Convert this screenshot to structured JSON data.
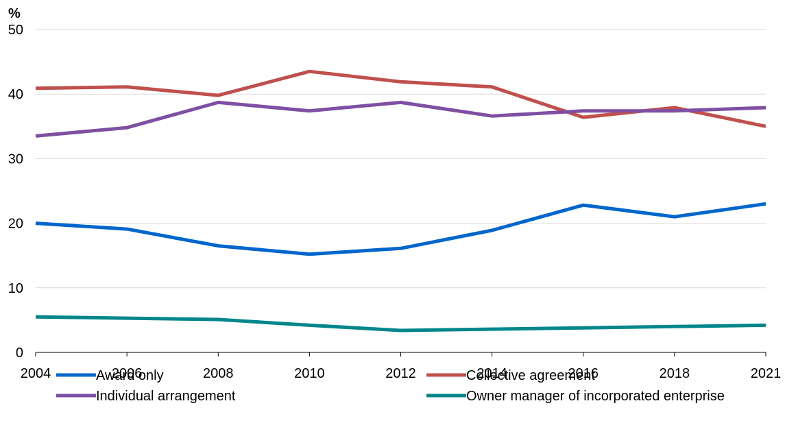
{
  "chart_data": {
    "type": "line",
    "y_unit_label": "%",
    "x": [
      2004,
      2006,
      2008,
      2010,
      2012,
      2014,
      2016,
      2018,
      2021
    ],
    "x_tick_labels": [
      "2004",
      "2006",
      "2008",
      "2010",
      "2012",
      "2014",
      "2016",
      "2018",
      "2021"
    ],
    "ylim": [
      0,
      50
    ],
    "y_ticks": [
      0,
      10,
      20,
      30,
      40,
      50
    ],
    "y_tick_labels": [
      "0",
      "10",
      "20",
      "30",
      "40",
      "50"
    ],
    "grid": true,
    "legend_position": "bottom",
    "series": [
      {
        "name": "Award only",
        "color": "#0066cc",
        "values": [
          20.0,
          19.1,
          16.5,
          15.2,
          16.1,
          18.9,
          22.8,
          21.0,
          23.0
        ]
      },
      {
        "name": "Collective agreement",
        "color": "#c0504d",
        "values": [
          40.9,
          41.1,
          39.8,
          43.5,
          41.9,
          41.1,
          36.4,
          37.9,
          35.0
        ]
      },
      {
        "name": "Individual arrangement",
        "color": "#7f4fa3",
        "values": [
          33.5,
          34.8,
          38.7,
          37.4,
          38.7,
          36.6,
          37.4,
          37.4,
          37.9
        ]
      },
      {
        "name": "Owner manager of incorporated enterprise",
        "color": "#00868b",
        "values": [
          5.5,
          5.3,
          5.1,
          4.2,
          3.4,
          3.6,
          3.8,
          4.0,
          4.2
        ]
      }
    ]
  }
}
